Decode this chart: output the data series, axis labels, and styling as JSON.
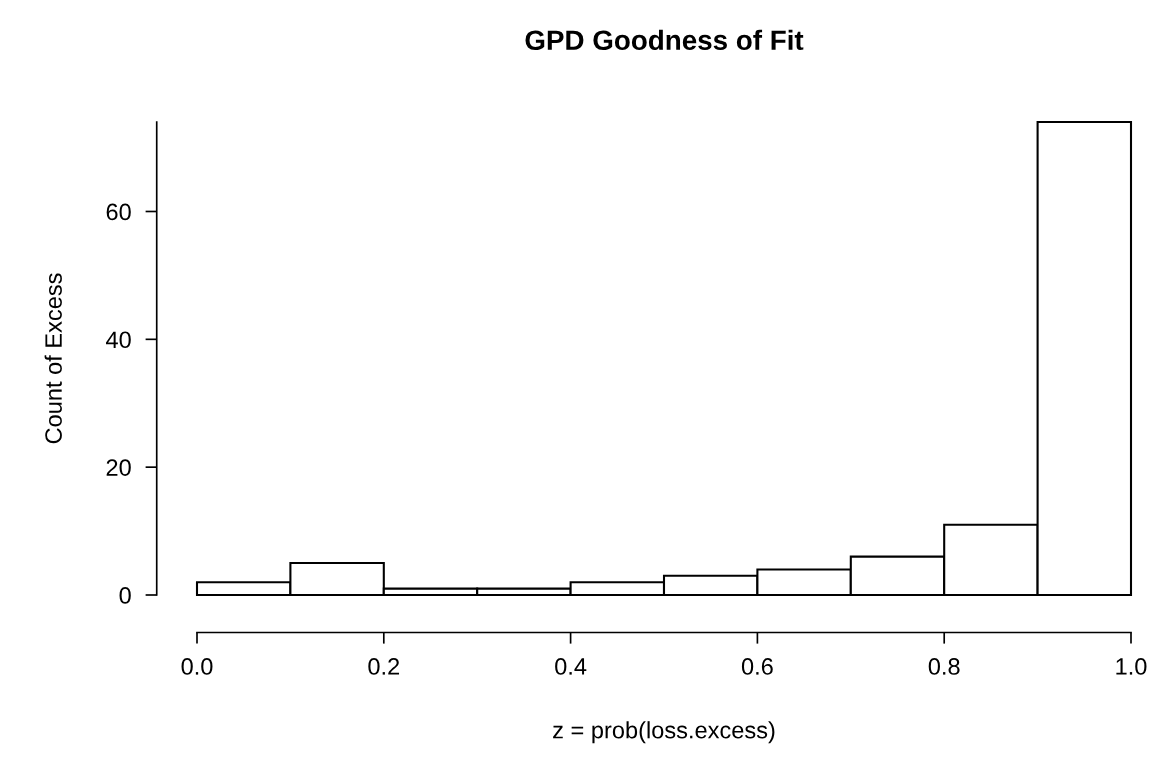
{
  "chart_data": {
    "type": "histogram",
    "title": "GPD Goodness of Fit",
    "xlabel": "z = prob(loss.excess)",
    "ylabel": "Count of Excess",
    "bins": [
      0.0,
      0.1,
      0.2,
      0.3,
      0.4,
      0.5,
      0.6,
      0.7,
      0.8,
      0.9,
      1.0
    ],
    "values": [
      2,
      5,
      1,
      1,
      2,
      3,
      4,
      6,
      11,
      74
    ],
    "color": "#ffffff",
    "xlim": [
      0,
      1
    ],
    "ylim": [
      0,
      74
    ],
    "xticks": [
      {
        "value": 0,
        "label": "0.0"
      },
      {
        "value": 0.2,
        "label": "0.2"
      },
      {
        "value": 0.4,
        "label": "0.4"
      },
      {
        "value": 0.6,
        "label": "0.6"
      },
      {
        "value": 0.8,
        "label": "0.8"
      },
      {
        "value": 1,
        "label": "1.0"
      }
    ],
    "yticks": [
      0,
      20,
      40,
      60
    ],
    "grid": false
  }
}
